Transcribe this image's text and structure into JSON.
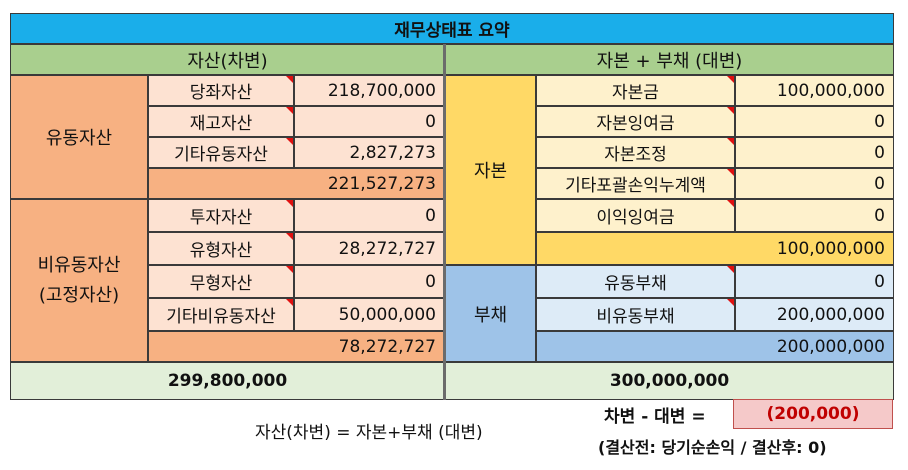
{
  "title": "재무상태표 요약",
  "left_header": "자산(차변)",
  "right_header": "자본 + 부채 (대변)",
  "current_assets": {
    "group_label": "유동자산",
    "rows": [
      {
        "label": "당좌자산",
        "value": "218,700,000"
      },
      {
        "label": "재고자산",
        "value": "0"
      },
      {
        "label": "기타유동자산",
        "value": "2,827,273"
      }
    ],
    "subtotal": "221,527,273"
  },
  "noncurrent_assets": {
    "group_label": "비유동자산",
    "group_label_sub": "(고정자산)",
    "rows": [
      {
        "label": "투자자산",
        "value": "0"
      },
      {
        "label": "유형자산",
        "value": "28,272,727"
      },
      {
        "label": "무형자산",
        "value": "0"
      },
      {
        "label": "기타비유동자산",
        "value": "50,000,000"
      }
    ],
    "subtotal": "78,272,727"
  },
  "equity": {
    "group_label": "자본",
    "rows": [
      {
        "label": "자본금",
        "value": "100,000,000"
      },
      {
        "label": "자본잉여금",
        "value": "0"
      },
      {
        "label": "자본조정",
        "value": "0"
      },
      {
        "label": "기타포괄손익누계액",
        "value": "0"
      },
      {
        "label": "이익잉여금",
        "value": "0"
      }
    ],
    "subtotal": "100,000,000"
  },
  "liabilities": {
    "group_label": "부채",
    "rows": [
      {
        "label": "유동부채",
        "value": "0"
      },
      {
        "label": "비유동부채",
        "value": "200,000,000"
      }
    ],
    "subtotal": "200,000,000"
  },
  "total_assets": "299,800,000",
  "total_equity_liabilities": "300,000,000",
  "footer": {
    "equation": "자산(차변) = 자본+부채 (대변)",
    "diff_label": "차변 - 대변 =",
    "diff_value": "(200,000)",
    "note": "(결산전: 당기순손익 / 결산후: 0)"
  },
  "colors": {
    "title": "#1aaeea",
    "header": "#a9cf8e",
    "asset_group": "#f7b182",
    "asset_row": "#fde2d2",
    "equity_group": "#ffd966",
    "equity_row": "#fef1cc",
    "liability_group": "#9ec3e8",
    "liability_row": "#ddebf7",
    "total_row": "#e2efd9",
    "diff_box": "#f5c9c9"
  }
}
